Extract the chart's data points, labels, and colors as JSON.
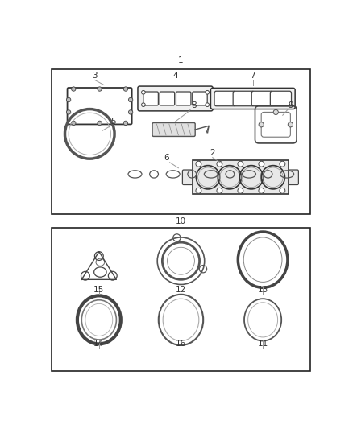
{
  "background_color": "#ffffff",
  "text_color": "#333333",
  "line_color": "#555555",
  "fig_width": 4.38,
  "fig_height": 5.33,
  "dpi": 100
}
